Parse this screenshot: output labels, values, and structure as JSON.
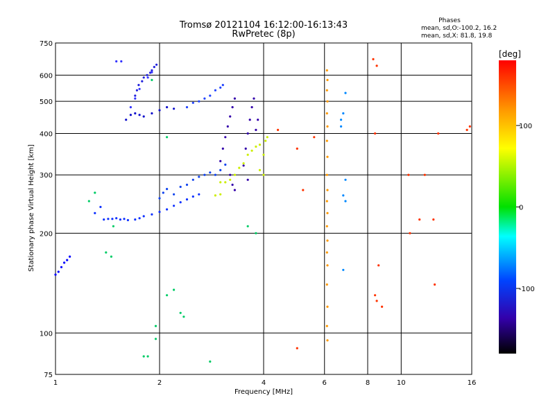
{
  "chart_data": {
    "type": "scatter",
    "title": "Tromsø 20121104 16:12:00-16:13:43",
    "subtitle": "RwPretec (8p)",
    "xlabel": "Frequency [MHz]",
    "ylabel": "Stationary phase Virtual Height [km]",
    "x_scale": "log",
    "y_scale": "log",
    "xlim": [
      1,
      16
    ],
    "ylim": [
      75,
      750
    ],
    "x_ticks": [
      1,
      2,
      4,
      6,
      8,
      10,
      16
    ],
    "y_ticks": [
      75,
      100,
      200,
      300,
      400,
      500,
      600,
      750
    ],
    "grid": true,
    "stats": {
      "heading": "Phases",
      "line1": "mean, sd,O:-100.2, 16.2",
      "line2": "mean, sd,X:  81.8, 19.8"
    },
    "colorbar": {
      "label": "[deg]",
      "range": [
        -180,
        180
      ],
      "ticks": [
        100,
        0,
        -100
      ]
    },
    "series": [
      {
        "values": [
          [
            1.0,
            150
          ],
          [
            1.02,
            153
          ],
          [
            1.04,
            158
          ],
          [
            1.06,
            163
          ],
          [
            1.08,
            166
          ],
          [
            1.1,
            170
          ]
        ]
      },
      {
        "values": [
          [
            1.3,
            230
          ],
          [
            1.35,
            240
          ],
          [
            1.38,
            220
          ],
          [
            1.42,
            221
          ],
          [
            1.46,
            221
          ],
          [
            1.5,
            222
          ],
          [
            1.54,
            220
          ],
          [
            1.58,
            221
          ],
          [
            1.62,
            219
          ],
          [
            1.7,
            220
          ],
          [
            1.75,
            222
          ],
          [
            1.8,
            225
          ],
          [
            1.9,
            228
          ],
          [
            2.0,
            232
          ],
          [
            2.1,
            236
          ],
          [
            2.2,
            242
          ],
          [
            2.3,
            248
          ],
          [
            2.4,
            253
          ],
          [
            2.5,
            258
          ],
          [
            2.6,
            262
          ]
        ]
      },
      {
        "values": [
          [
            2.0,
            255
          ],
          [
            2.05,
            265
          ],
          [
            2.1,
            272
          ],
          [
            2.2,
            262
          ],
          [
            2.3,
            276
          ],
          [
            2.4,
            280
          ],
          [
            2.5,
            290
          ],
          [
            2.6,
            296
          ],
          [
            2.7,
            300
          ],
          [
            2.8,
            305
          ],
          [
            2.9,
            300
          ],
          [
            3.0,
            310
          ],
          [
            3.1,
            322
          ]
        ]
      },
      {
        "values": [
          [
            1.6,
            440
          ],
          [
            1.65,
            455
          ],
          [
            1.7,
            460
          ],
          [
            1.75,
            455
          ],
          [
            1.8,
            450
          ],
          [
            1.9,
            460
          ],
          [
            2.0,
            470
          ],
          [
            2.1,
            480
          ],
          [
            2.2,
            475
          ]
        ]
      },
      {
        "values": [
          [
            1.7,
            520
          ],
          [
            1.72,
            540
          ],
          [
            1.74,
            560
          ],
          [
            1.78,
            575
          ],
          [
            1.8,
            590
          ],
          [
            1.84,
            600
          ],
          [
            1.88,
            610
          ],
          [
            1.9,
            620
          ],
          [
            1.93,
            635
          ],
          [
            1.96,
            645
          ]
        ]
      },
      {
        "values": [
          [
            1.5,
            660
          ],
          [
            1.55,
            660
          ],
          [
            1.65,
            480
          ],
          [
            1.7,
            510
          ],
          [
            1.75,
            545
          ],
          [
            1.85,
            590
          ],
          [
            1.9,
            612
          ]
        ]
      },
      {
        "values": [
          [
            2.4,
            480
          ],
          [
            2.5,
            495
          ],
          [
            2.6,
            500
          ],
          [
            2.7,
            510
          ],
          [
            2.8,
            520
          ],
          [
            2.9,
            540
          ],
          [
            3.0,
            550
          ],
          [
            3.05,
            560
          ]
        ]
      },
      {
        "values": [
          [
            3.0,
            330
          ],
          [
            3.05,
            360
          ],
          [
            3.1,
            390
          ],
          [
            3.15,
            420
          ],
          [
            3.2,
            450
          ],
          [
            3.25,
            480
          ],
          [
            3.3,
            510
          ],
          [
            3.2,
            300
          ],
          [
            3.25,
            280
          ],
          [
            3.3,
            270
          ],
          [
            3.5,
            320
          ],
          [
            3.55,
            360
          ],
          [
            3.6,
            400
          ],
          [
            3.65,
            440
          ],
          [
            3.7,
            480
          ],
          [
            3.75,
            510
          ],
          [
            3.6,
            290
          ],
          [
            3.8,
            410
          ],
          [
            3.85,
            440
          ]
        ]
      },
      {
        "values": [
          [
            3.0,
            285
          ],
          [
            3.1,
            285
          ],
          [
            3.2,
            290
          ],
          [
            3.3,
            300
          ],
          [
            3.4,
            315
          ],
          [
            3.5,
            325
          ],
          [
            3.6,
            345
          ],
          [
            3.7,
            355
          ],
          [
            3.8,
            365
          ],
          [
            3.9,
            370
          ],
          [
            4.0,
            345
          ],
          [
            4.05,
            380
          ],
          [
            4.1,
            390
          ],
          [
            4.0,
            300
          ],
          [
            3.9,
            310
          ],
          [
            2.9,
            260
          ],
          [
            3.0,
            262
          ]
        ]
      },
      {
        "values": [
          [
            6.1,
            620
          ],
          [
            6.12,
            580
          ],
          [
            6.1,
            540
          ],
          [
            6.12,
            500
          ],
          [
            6.1,
            460
          ],
          [
            6.12,
            420
          ],
          [
            6.1,
            380
          ],
          [
            6.12,
            340
          ],
          [
            6.1,
            300
          ],
          [
            6.12,
            270
          ],
          [
            6.1,
            250
          ],
          [
            6.12,
            230
          ],
          [
            6.1,
            210
          ],
          [
            6.12,
            190
          ],
          [
            6.1,
            175
          ],
          [
            6.12,
            160
          ],
          [
            6.1,
            140
          ],
          [
            6.12,
            120
          ],
          [
            6.1,
            105
          ],
          [
            6.12,
            95
          ]
        ]
      },
      {
        "values": [
          [
            6.7,
            440
          ],
          [
            6.8,
            460
          ],
          [
            6.7,
            420
          ],
          [
            6.9,
            530
          ],
          [
            6.9,
            290
          ],
          [
            6.8,
            260
          ],
          [
            6.9,
            250
          ],
          [
            6.8,
            155
          ]
        ]
      },
      {
        "values": [
          [
            4.4,
            410
          ],
          [
            5.0,
            360
          ],
          [
            5.2,
            270
          ],
          [
            5.6,
            390
          ],
          [
            5.0,
            90
          ],
          [
            8.3,
            670
          ],
          [
            8.5,
            640
          ],
          [
            8.4,
            400
          ],
          [
            8.4,
            130
          ],
          [
            8.5,
            125
          ],
          [
            8.8,
            120
          ],
          [
            8.6,
            160
          ],
          [
            10.5,
            300
          ],
          [
            10.6,
            200
          ],
          [
            11.3,
            220
          ],
          [
            11.7,
            300
          ],
          [
            12.4,
            220
          ],
          [
            12.5,
            140
          ],
          [
            15.5,
            410
          ],
          [
            15.8,
            420
          ],
          [
            12.8,
            400
          ]
        ]
      },
      {
        "values": [
          [
            1.3,
            265
          ],
          [
            1.25,
            250
          ],
          [
            1.4,
            175
          ],
          [
            1.45,
            170
          ],
          [
            1.47,
            210
          ],
          [
            2.1,
            390
          ],
          [
            1.9,
            580
          ],
          [
            2.1,
            130
          ],
          [
            2.2,
            135
          ],
          [
            2.3,
            115
          ],
          [
            2.35,
            112
          ],
          [
            2.8,
            82
          ],
          [
            1.95,
            96
          ],
          [
            1.95,
            105
          ],
          [
            1.8,
            85
          ],
          [
            1.85,
            85
          ],
          [
            3.6,
            210
          ],
          [
            3.8,
            200
          ]
        ]
      }
    ]
  }
}
